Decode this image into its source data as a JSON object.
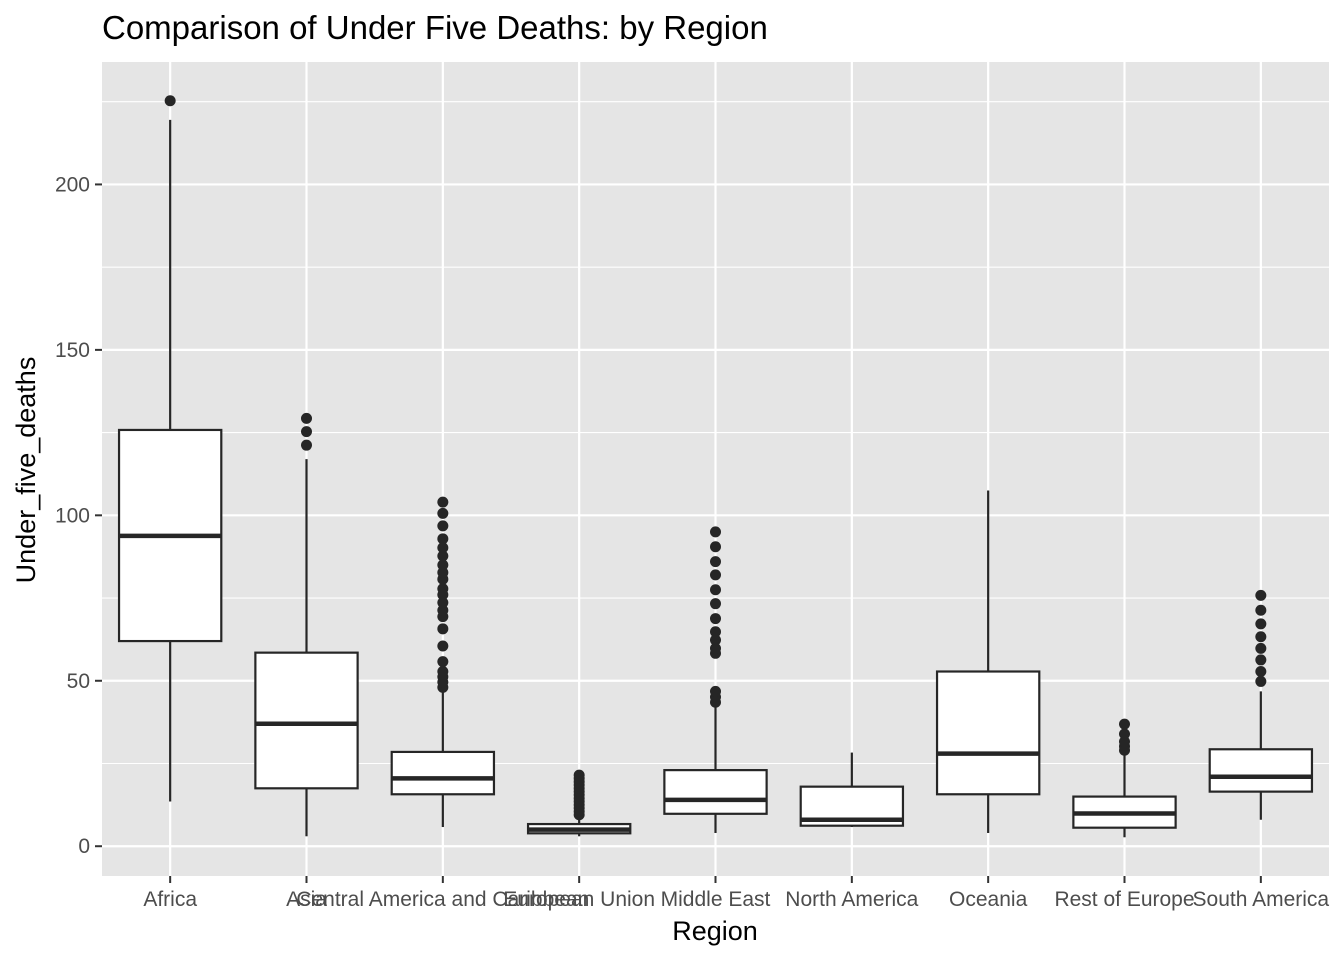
{
  "chart_data": {
    "type": "boxplot",
    "title": "Comparison of Under Five Deaths:  by Region",
    "xlabel": "Region",
    "ylabel": "Under_five_deaths",
    "ylim": [
      -9,
      237
    ],
    "yticks": [
      0,
      50,
      100,
      150,
      200
    ],
    "grid": true,
    "legend": "none",
    "colors": {
      "panel": "#E5E5E5",
      "grid": "#FFFFFF",
      "box_fill": "#FFFFFF",
      "box_line": "#262626",
      "tick_text": "#4D4D4D"
    },
    "categories": [
      "Africa",
      "Asia",
      "Central America and Caribbean",
      "European Union",
      "Middle East",
      "North America",
      "Oceania",
      "Rest of Europe",
      "South America"
    ],
    "boxes": [
      {
        "category": "Africa",
        "whisker_low": 13.5,
        "q1": 62,
        "median": 93.8,
        "q3": 125.8,
        "whisker_high": 219.5,
        "outliers": [
          225.3
        ]
      },
      {
        "category": "Asia",
        "whisker_low": 3,
        "q1": 17.5,
        "median": 37,
        "q3": 58.5,
        "whisker_high": 117,
        "outliers": [
          121.2,
          125.3,
          129.3
        ]
      },
      {
        "category": "Central America and Caribbean",
        "whisker_low": 5.8,
        "q1": 15.7,
        "median": 20.5,
        "q3": 28.5,
        "whisker_high": 46.5,
        "outliers": [
          48,
          49.6,
          51.2,
          52.8,
          55.8,
          60.5,
          65.7,
          69.4,
          71.3,
          73.6,
          76,
          77.8,
          80.7,
          82.7,
          85,
          87.7,
          90.2,
          92.9,
          96.8,
          100.6,
          104
        ]
      },
      {
        "category": "European Union",
        "whisker_low": 3,
        "q1": 3.9,
        "median": 5,
        "q3": 6.7,
        "whisker_high": 8.5,
        "outliers": [
          9.5,
          10.5,
          11.5,
          12.5,
          13.5,
          14.5,
          15.5,
          16.5,
          17.5,
          18.5,
          19.5,
          20.5,
          21.5
        ]
      },
      {
        "category": "Middle East",
        "whisker_low": 4,
        "q1": 9.8,
        "median": 14,
        "q3": 23,
        "whisker_high": 42.3,
        "outliers": [
          43.5,
          45.1,
          46.8,
          58.3,
          59.8,
          62.3,
          64.8,
          68.8,
          73.3,
          77.5,
          82,
          86,
          90.5,
          95
        ]
      },
      {
        "category": "North America",
        "whisker_low": 5.8,
        "q1": 6.2,
        "median": 8,
        "q3": 18,
        "whisker_high": 28.3,
        "outliers": []
      },
      {
        "category": "Oceania",
        "whisker_low": 4,
        "q1": 15.7,
        "median": 28,
        "q3": 52.8,
        "whisker_high": 107.5,
        "outliers": []
      },
      {
        "category": "Rest of Europe",
        "whisker_low": 2.7,
        "q1": 5.6,
        "median": 9.9,
        "q3": 15,
        "whisker_high": 27.8,
        "outliers": [
          29,
          30.2,
          31.6,
          33.9,
          36.9
        ]
      },
      {
        "category": "South America",
        "whisker_low": 8,
        "q1": 16.5,
        "median": 21,
        "q3": 29.3,
        "whisker_high": 46.8,
        "outliers": [
          49.8,
          52.8,
          56.3,
          59.8,
          63.3,
          67.2,
          71.3,
          75.8
        ]
      }
    ]
  }
}
